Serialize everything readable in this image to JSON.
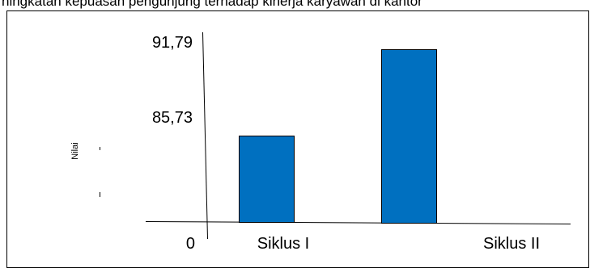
{
  "header_text": "ningkatan kepuasan pengunjung terhadap kinerja karyawan di kantor",
  "chart_data": {
    "type": "bar",
    "categories": [
      "Siklus I",
      "Siklus II"
    ],
    "values": [
      85.73,
      91.79
    ],
    "ylabel": "Nilai",
    "xlabel": "",
    "title": "",
    "y_tick_labels": [
      "0",
      "85,73",
      "91,79"
    ],
    "bar_color": "#0070c0",
    "bar_border_color": "#000000",
    "grid": false,
    "legend": "none"
  }
}
